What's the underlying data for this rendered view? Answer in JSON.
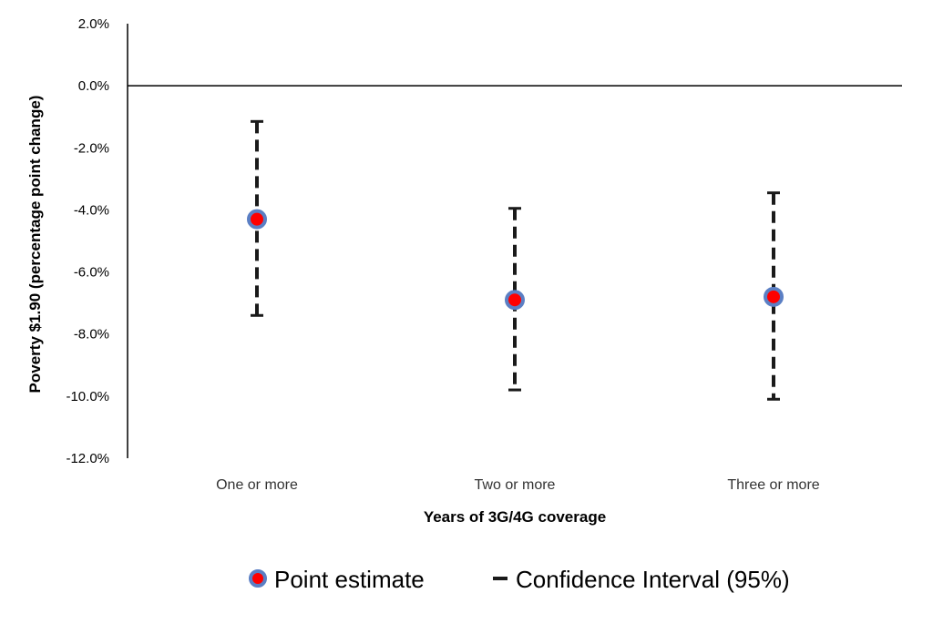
{
  "chart_data": {
    "type": "scatter",
    "subtype": "point-estimate-with-confidence-intervals",
    "categories": [
      "One or more",
      "Two or more",
      "Three or more"
    ],
    "series": [
      {
        "name": "Point estimate",
        "values": [
          -4.3,
          -6.9,
          -6.8
        ]
      },
      {
        "name": "Confidence Interval (95%)",
        "lower": [
          -7.4,
          -9.8,
          -10.1
        ],
        "upper": [
          -1.15,
          -3.95,
          -3.45
        ]
      }
    ],
    "xlabel": "Years of 3G/4G coverage",
    "ylabel": "Poverty $1.90 (percentage point change)",
    "ylim": [
      -12,
      2
    ],
    "yticks": [
      "2.0%",
      "0.0%",
      "-2.0%",
      "-4.0%",
      "-6.0%",
      "-8.0%",
      "-10.0%",
      "-12.0%"
    ],
    "ytick_values": [
      2,
      0,
      -2,
      -4,
      -6,
      -8,
      -10,
      -12
    ],
    "grid": false,
    "zero_line": true,
    "legend_position": "bottom-center",
    "colors": {
      "point_fill": "#ff0000",
      "point_border": "#5b7fc4",
      "ci_line": "#1a1a1a",
      "axis": "#000000"
    }
  }
}
